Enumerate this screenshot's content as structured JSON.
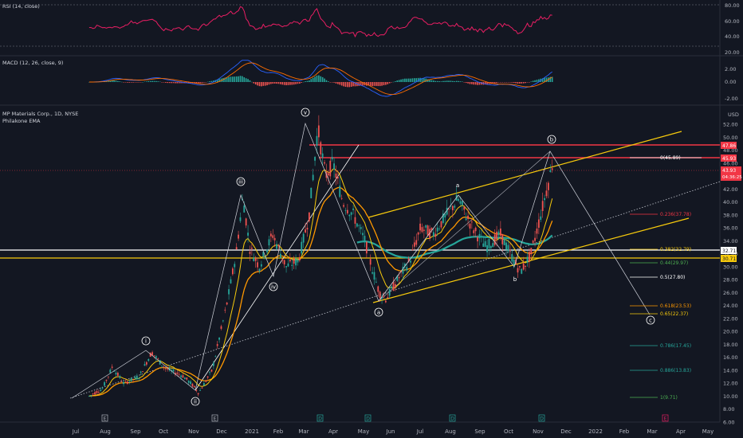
{
  "header": {
    "symbol": "MP Materials Corp., 1D, NYSE",
    "indicator": "Philakone EMA",
    "currency": "USD"
  },
  "rsi": {
    "label": "RSI (14, close)",
    "ticks": [
      "80.00",
      "60.00",
      "40.00",
      "20.00"
    ],
    "color": "#e91e63"
  },
  "macd": {
    "label": "MACD (12, 26, close, 9)",
    "ticks": [
      "2.00",
      "0.00",
      "-2.00"
    ]
  },
  "price_axis": {
    "ticks": [
      "52.00",
      "50.00",
      "48.00",
      "46.00",
      "44.00",
      "42.00",
      "40.00",
      "38.00",
      "36.00",
      "34.00",
      "32.00",
      "30.00",
      "28.00",
      "26.00",
      "24.00",
      "22.00",
      "20.00",
      "18.00",
      "16.00",
      "14.00",
      "12.00",
      "10.00",
      "8.00",
      "6.00"
    ]
  },
  "price_badges": [
    {
      "value": "47.86",
      "color": "#f23645"
    },
    {
      "value": "45.93",
      "color": "#f23645"
    },
    {
      "value": "43.93",
      "color": "#f23645"
    },
    {
      "value": "04:36:25",
      "color": "#f23645"
    },
    {
      "value": "32.71",
      "color": "#ffffff"
    },
    {
      "value": "30.71",
      "color": "#f7ca0c"
    }
  ],
  "time_axis": {
    "labels": [
      "Jul",
      "Aug",
      "Sep",
      "Oct",
      "Nov",
      "Dec",
      "2021",
      "Feb",
      "Mar",
      "Apr",
      "May",
      "Jun",
      "Jul",
      "Aug",
      "Sep",
      "Oct",
      "Nov",
      "Dec",
      "2022",
      "Feb",
      "Mar",
      "Apr",
      "May"
    ]
  },
  "waves": [
    "i",
    "ii",
    "iii",
    "iv",
    "v",
    "a",
    "b",
    "c",
    "a",
    "b"
  ],
  "fib_levels": [
    {
      "label": "0(45.89)",
      "color": "#ffffff"
    },
    {
      "label": "0.236(37.78)",
      "color": "#f23645"
    },
    {
      "label": "0.382(32.79)",
      "color": "#f7ca0c"
    },
    {
      "label": "0.44(29.97)",
      "color": "#4caf50"
    },
    {
      "label": "0.5(27.80)",
      "color": "#ffffff"
    },
    {
      "label": "0.618(23.53)",
      "color": "#ff9800"
    },
    {
      "label": "0.65(22.37)",
      "color": "#f7ca0c"
    },
    {
      "label": "0.786(17.45)",
      "color": "#26a69a"
    },
    {
      "label": "0.886(13.83)",
      "color": "#26a69a"
    },
    {
      "label": "1(9.71)",
      "color": "#4caf50"
    }
  ],
  "events": [
    "E",
    "E",
    "D",
    "D",
    "D",
    "D",
    "E"
  ],
  "chart_data": {
    "type": "candlestick",
    "xlabel": "",
    "ylabel": "",
    "ylim": [
      6,
      53
    ],
    "price_series": [
      [
        "2020-07-15",
        10.0
      ],
      [
        "2020-07-29",
        11.2
      ],
      [
        "2020-08-08",
        14.5
      ],
      [
        "2020-08-20",
        12.0
      ],
      [
        "2020-09-05",
        13.0
      ],
      [
        "2020-09-18",
        16.8
      ],
      [
        "2020-10-02",
        14.3
      ],
      [
        "2020-10-20",
        13.2
      ],
      [
        "2020-10-30",
        11.8
      ],
      [
        "2020-11-06",
        10.5
      ],
      [
        "2020-11-20",
        14.0
      ],
      [
        "2020-12-05",
        24.0
      ],
      [
        "2020-12-15",
        32.0
      ],
      [
        "2020-12-22",
        41.0
      ],
      [
        "2020-12-29",
        33.0
      ],
      [
        "2021-01-08",
        30.0
      ],
      [
        "2021-01-22",
        35.0
      ],
      [
        "2021-02-05",
        30.0
      ],
      [
        "2021-02-18",
        31.0
      ],
      [
        "2021-03-01",
        38.0
      ],
      [
        "2021-03-10",
        51.5
      ],
      [
        "2021-03-18",
        44.0
      ],
      [
        "2021-03-26",
        46.0
      ],
      [
        "2021-04-05",
        40.0
      ],
      [
        "2021-04-16",
        38.0
      ],
      [
        "2021-04-28",
        34.0
      ],
      [
        "2021-05-05",
        30.0
      ],
      [
        "2021-05-13",
        26.0
      ],
      [
        "2021-05-20",
        25.0
      ],
      [
        "2021-06-01",
        28.0
      ],
      [
        "2021-06-14",
        31.0
      ],
      [
        "2021-06-25",
        36.0
      ],
      [
        "2021-07-08",
        35.0
      ],
      [
        "2021-07-22",
        38.0
      ],
      [
        "2021-08-03",
        40.5
      ],
      [
        "2021-08-18",
        36.0
      ],
      [
        "2021-09-01",
        33.0
      ],
      [
        "2021-09-16",
        35.0
      ],
      [
        "2021-09-30",
        31.0
      ],
      [
        "2021-10-07",
        29.2
      ],
      [
        "2021-10-18",
        32.0
      ],
      [
        "2021-10-28",
        38.0
      ],
      [
        "2021-11-05",
        43.0
      ],
      [
        "2021-11-10",
        46.5
      ]
    ],
    "rsi_range": [
      20,
      80
    ],
    "macd_range": [
      -2,
      2
    ]
  }
}
